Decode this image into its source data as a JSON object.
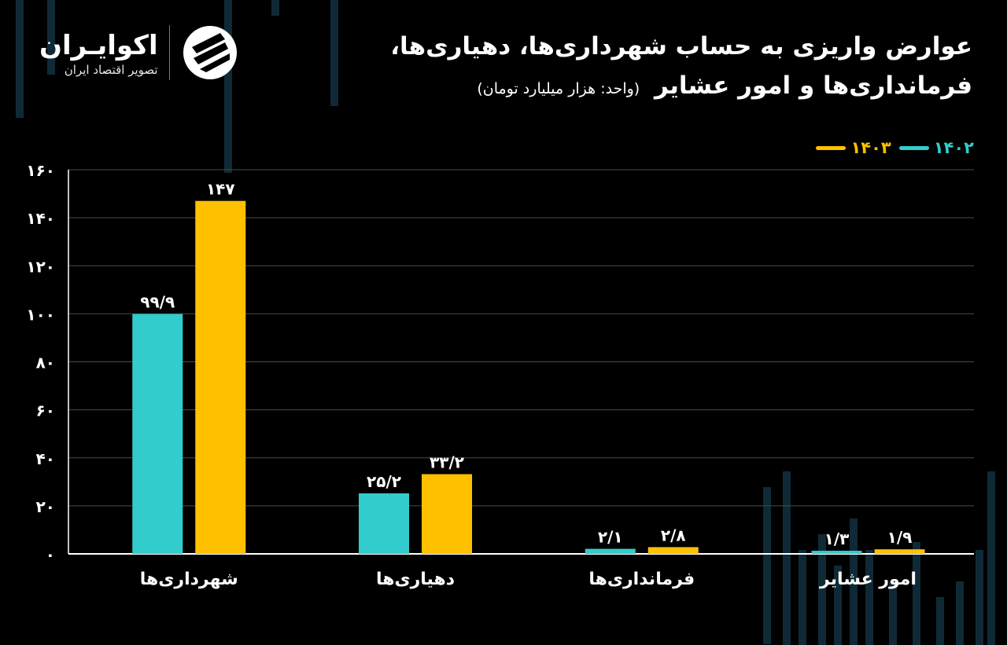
{
  "brand": {
    "name": "اکوایـران",
    "tagline": "تصویر اقتصاد ایران",
    "logo_icon": "ekoiran-logo-icon"
  },
  "title": {
    "line1": "عوارض واریزی به حساب شهرداری‌ها، دهیاری‌ها،",
    "line2": "فرمانداری‌ها و امور عشایر",
    "unit": "(واحد: هزار میلیارد تومان)"
  },
  "colors": {
    "series_1402": "#33CCCC",
    "series_1403": "#FFC000",
    "grid": "#4a4a4a",
    "background": "#000000"
  },
  "chart_data": {
    "type": "bar",
    "title": "عوارض واریزی به حساب شهرداری‌ها، دهیاری‌ها، فرمانداری‌ها و امور عشایر",
    "ylabel": "هزار میلیارد تومان",
    "xlabel": "",
    "ylim": [
      0,
      160
    ],
    "yticks": [
      0,
      20,
      40,
      60,
      80,
      100,
      120,
      140,
      160
    ],
    "ytick_labels": [
      "۰",
      "۲۰",
      "۴۰",
      "۶۰",
      "۸۰",
      "۱۰۰",
      "۱۲۰",
      "۱۴۰",
      "۱۶۰"
    ],
    "categories": [
      "شهرداری‌ها",
      "دهیاری‌ها",
      "فرمانداری‌ها",
      "امور عشایر"
    ],
    "series": [
      {
        "name": "۱۴۰۲",
        "values": [
          99.9,
          25.2,
          2.1,
          1.3
        ],
        "labels": [
          "۹۹/۹",
          "۲۵/۲",
          "۲/۱",
          "۱/۳"
        ],
        "color": "#33CCCC"
      },
      {
        "name": "۱۴۰۳",
        "values": [
          147,
          33.2,
          2.8,
          1.9
        ],
        "labels": [
          "۱۴۷",
          "۳۳/۲",
          "۲/۸",
          "۱/۹"
        ],
        "color": "#FFC000"
      }
    ],
    "grid": true,
    "legend": "top-right"
  }
}
